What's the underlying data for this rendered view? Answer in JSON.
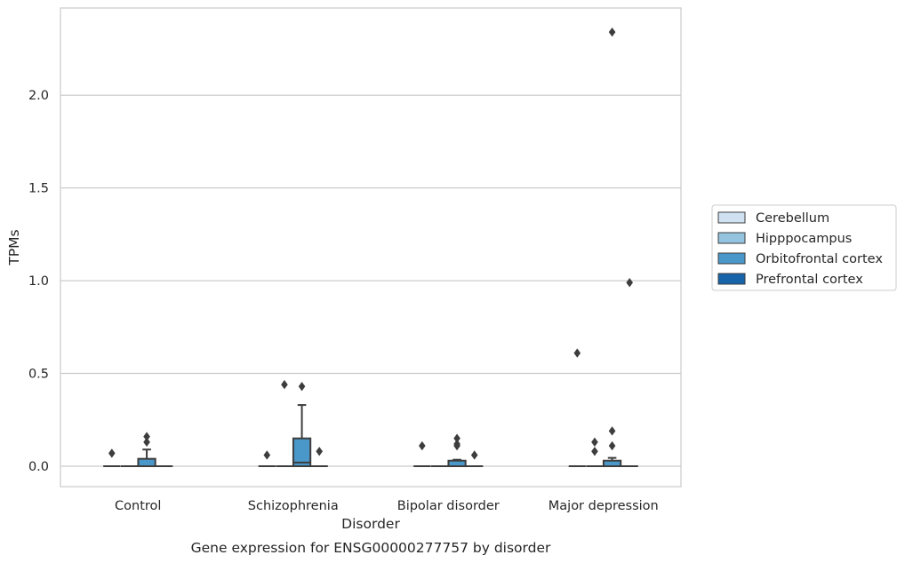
{
  "chart_data": {
    "type": "box",
    "title": "Gene expression for ENSG00000277757 by disorder",
    "xlabel": "Disorder",
    "ylabel": "TPMs",
    "ylim": [
      -0.11,
      2.47
    ],
    "y_ticks": [
      0.0,
      0.5,
      1.0,
      1.5,
      2.0
    ],
    "y_tick_labels": [
      "0.0",
      "0.5",
      "1.0",
      "1.5",
      "2.0"
    ],
    "grid": "horizontal",
    "legend_position": "right",
    "categories": [
      "Control",
      "Schizophrenia",
      "Bipolar disorder",
      "Major depression"
    ],
    "series": [
      {
        "name": "Cerebellum",
        "color": "#d0e1f2",
        "boxes": [
          {
            "q1": 0,
            "median": 0,
            "q3": 0,
            "whisker_low": 0,
            "whisker_high": 0,
            "outliers": [
              0.07
            ]
          },
          {
            "q1": 0,
            "median": 0,
            "q3": 0,
            "whisker_low": 0,
            "whisker_high": 0,
            "outliers": [
              0.06
            ]
          },
          {
            "q1": 0,
            "median": 0,
            "q3": 0,
            "whisker_low": 0,
            "whisker_high": 0,
            "outliers": [
              0.11
            ]
          },
          {
            "q1": 0,
            "median": 0,
            "q3": 0,
            "whisker_low": 0,
            "whisker_high": 0,
            "outliers": [
              0.61
            ]
          }
        ]
      },
      {
        "name": "Hipppocampus",
        "color": "#94c4df",
        "boxes": [
          {
            "q1": 0,
            "median": 0,
            "q3": 0,
            "whisker_low": 0,
            "whisker_high": 0,
            "outliers": []
          },
          {
            "q1": 0,
            "median": 0,
            "q3": 0,
            "whisker_low": 0,
            "whisker_high": 0,
            "outliers": [
              0.44
            ]
          },
          {
            "q1": 0,
            "median": 0,
            "q3": 0,
            "whisker_low": 0,
            "whisker_high": 0,
            "outliers": []
          },
          {
            "q1": 0,
            "median": 0,
            "q3": 0,
            "whisker_low": 0,
            "whisker_high": 0,
            "outliers": [
              0.08,
              0.13
            ]
          }
        ]
      },
      {
        "name": "Orbitofrontal cortex",
        "color": "#4a98c9",
        "boxes": [
          {
            "q1": 0,
            "median": 0,
            "q3": 0.04,
            "whisker_low": 0,
            "whisker_high": 0.09,
            "outliers": [
              0.13,
              0.16
            ]
          },
          {
            "q1": 0,
            "median": 0.02,
            "q3": 0.15,
            "whisker_low": 0,
            "whisker_high": 0.33,
            "outliers": [
              0.43
            ]
          },
          {
            "q1": 0,
            "median": 0,
            "q3": 0.03,
            "whisker_low": 0,
            "whisker_high": 0.035,
            "outliers": [
              0.11,
              0.12,
              0.15
            ]
          },
          {
            "q1": 0,
            "median": 0,
            "q3": 0.03,
            "whisker_low": 0,
            "whisker_high": 0.045,
            "outliers": [
              0.11,
              0.19,
              2.34
            ]
          }
        ]
      },
      {
        "name": "Prefrontal cortex",
        "color": "#1764ab",
        "boxes": [
          {
            "q1": 0,
            "median": 0,
            "q3": 0,
            "whisker_low": 0,
            "whisker_high": 0,
            "outliers": []
          },
          {
            "q1": 0,
            "median": 0,
            "q3": 0,
            "whisker_low": 0,
            "whisker_high": 0,
            "outliers": [
              0.08
            ]
          },
          {
            "q1": 0,
            "median": 0,
            "q3": 0,
            "whisker_low": 0,
            "whisker_high": 0,
            "outliers": [
              0.06
            ]
          },
          {
            "q1": 0,
            "median": 0,
            "q3": 0,
            "whisker_low": 0,
            "whisker_high": 0,
            "outliers": [
              0.99
            ]
          }
        ]
      }
    ]
  }
}
